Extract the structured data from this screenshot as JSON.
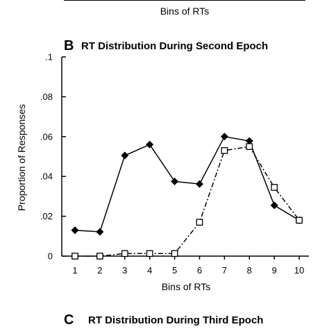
{
  "top_fragment": {
    "xlabel": "Bins of RTs"
  },
  "panel_b": {
    "letter": "B",
    "title": "RT Distribution During Second Epoch"
  },
  "panel_c": {
    "letter": "C",
    "title": "RT Distribution During Third Epoch"
  },
  "chart_data": {
    "type": "line",
    "title": "RT Distribution During Second Epoch",
    "xlabel": "Bins of RTs",
    "ylabel": "Proportion of Responses",
    "categories": [
      1,
      2,
      3,
      4,
      5,
      6,
      7,
      8,
      9,
      10
    ],
    "ylim": [
      0,
      0.1
    ],
    "yticks": [
      0,
      0.02,
      0.04,
      0.06,
      0.08,
      0.1
    ],
    "ytick_labels": [
      "0",
      ".02",
      ".04",
      ".06",
      ".08",
      ".1"
    ],
    "grid": false,
    "legend": "none",
    "series": [
      {
        "marker": "filled-diamond",
        "line_style": "solid",
        "color": "#000000",
        "values": [
          0.013,
          0.0122,
          0.0505,
          0.056,
          0.0375,
          0.0362,
          0.06,
          0.0578,
          0.0255,
          0.018
        ]
      },
      {
        "marker": "open-square",
        "line_style": "dash-dot",
        "color": "#000000",
        "values": [
          0.0,
          0.0,
          0.0013,
          0.0013,
          0.0013,
          0.017,
          0.053,
          0.055,
          0.0345,
          0.018
        ]
      }
    ]
  }
}
